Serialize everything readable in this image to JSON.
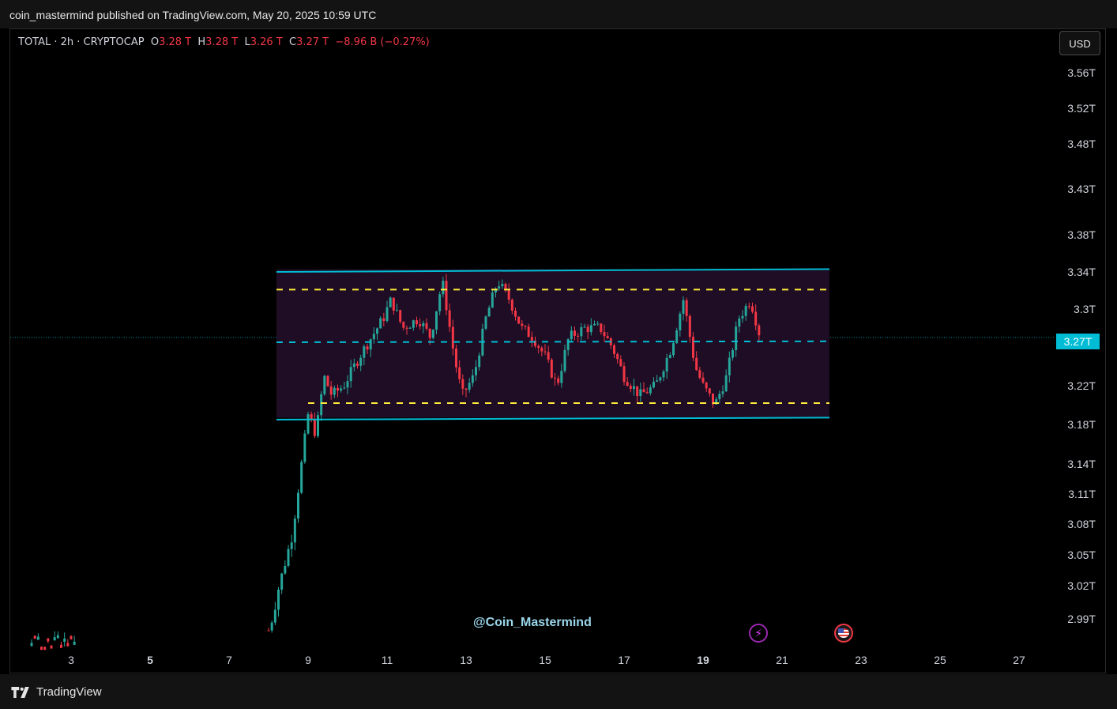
{
  "header": {
    "published_by": "coin_mastermind published on TradingView.com, May 20, 2025 10:59 UTC"
  },
  "legend": {
    "symbol": "TOTAL · 2h · CRYPTOCAP",
    "o_label": "O",
    "o_value": "3.28 T",
    "h_label": "H",
    "h_value": "3.28 T",
    "l_label": "L",
    "l_value": "3.26 T",
    "c_label": "C",
    "c_value": "3.27 T",
    "change": "−8.96 B (−0.27%)"
  },
  "currency_button": "USD",
  "current_price_label": "3.27T",
  "watermark": "@Coin_Mastermind",
  "footer": {
    "brand": "TradingView"
  },
  "colors": {
    "up": "#26a69a",
    "down": "#f23645",
    "channel_line": "#00bcd4",
    "midline": "#00bcd4",
    "inner_band": "#ffeb3b",
    "range_fill": "#1e0d24",
    "price_badge": "#00bcd4"
  },
  "icons": {
    "event_1": "lightning-icon",
    "event_2": "us-flag-icon"
  },
  "chart_data": {
    "type": "candlestick",
    "symbol": "TOTAL",
    "interval": "2h",
    "x_axis_ticks": [
      {
        "label": "3",
        "day": 3,
        "bold": false
      },
      {
        "label": "5",
        "day": 5,
        "bold": true
      },
      {
        "label": "7",
        "day": 7,
        "bold": false
      },
      {
        "label": "9",
        "day": 9,
        "bold": false
      },
      {
        "label": "11",
        "day": 11,
        "bold": false
      },
      {
        "label": "13",
        "day": 13,
        "bold": false
      },
      {
        "label": "15",
        "day": 15,
        "bold": false
      },
      {
        "label": "17",
        "day": 17,
        "bold": false
      },
      {
        "label": "19",
        "day": 19,
        "bold": true
      },
      {
        "label": "21",
        "day": 21,
        "bold": false
      },
      {
        "label": "23",
        "day": 23,
        "bold": false
      },
      {
        "label": "25",
        "day": 25,
        "bold": false
      },
      {
        "label": "27",
        "day": 27,
        "bold": false
      }
    ],
    "y_axis_ticks": [
      {
        "label": "3.56T",
        "value": 3.56
      },
      {
        "label": "3.52T",
        "value": 3.52
      },
      {
        "label": "3.48T",
        "value": 3.48
      },
      {
        "label": "3.43T",
        "value": 3.43
      },
      {
        "label": "3.38T",
        "value": 3.38
      },
      {
        "label": "3.34T",
        "value": 3.34
      },
      {
        "label": "3.3T",
        "value": 3.3
      },
      {
        "label": "3.22T",
        "value": 3.22
      },
      {
        "label": "3.18T",
        "value": 3.18
      },
      {
        "label": "3.14T",
        "value": 3.14
      },
      {
        "label": "3.11T",
        "value": 3.11
      },
      {
        "label": "3.08T",
        "value": 3.08
      },
      {
        "label": "3.05T",
        "value": 3.05
      },
      {
        "label": "3.02T",
        "value": 3.02
      },
      {
        "label": "2.99T",
        "value": 2.99
      }
    ],
    "current_price": 3.27,
    "range_box": {
      "start_day": 8.2,
      "end_day": 22.2,
      "top": 3.343,
      "bottom": 3.187
    },
    "drawings": [
      {
        "type": "channel",
        "role": "upper",
        "start": [
          8.2,
          3.34
        ],
        "end": [
          22.2,
          3.343
        ]
      },
      {
        "type": "channel",
        "role": "lower",
        "start": [
          8.2,
          3.185
        ],
        "end": [
          22.2,
          3.187
        ]
      },
      {
        "type": "dashed",
        "role": "inner-top",
        "start": [
          8.2,
          3.321
        ],
        "end": [
          22.2,
          3.321
        ]
      },
      {
        "type": "dashed",
        "role": "inner-bottom",
        "start": [
          9.0,
          3.202
        ],
        "end": [
          22.2,
          3.202
        ]
      },
      {
        "type": "dashed",
        "role": "mid",
        "start": [
          8.2,
          3.265
        ],
        "end": [
          22.2,
          3.266
        ]
      }
    ],
    "path_points": [
      [
        8.0,
        2.97
      ],
      [
        8.2,
        3.01
      ],
      [
        8.4,
        3.04
      ],
      [
        8.6,
        3.07
      ],
      [
        8.8,
        3.13
      ],
      [
        9.0,
        3.19
      ],
      [
        9.2,
        3.17
      ],
      [
        9.4,
        3.23
      ],
      [
        9.6,
        3.21
      ],
      [
        9.9,
        3.22
      ],
      [
        10.3,
        3.25
      ],
      [
        10.6,
        3.27
      ],
      [
        10.9,
        3.29
      ],
      [
        11.1,
        3.31
      ],
      [
        11.4,
        3.28
      ],
      [
        11.8,
        3.29
      ],
      [
        12.1,
        3.27
      ],
      [
        12.4,
        3.33
      ],
      [
        12.7,
        3.25
      ],
      [
        12.9,
        3.21
      ],
      [
        13.2,
        3.23
      ],
      [
        13.5,
        3.29
      ],
      [
        13.8,
        3.33
      ],
      [
        14.1,
        3.31
      ],
      [
        14.4,
        3.28
      ],
      [
        14.7,
        3.27
      ],
      [
        15.0,
        3.25
      ],
      [
        15.3,
        3.22
      ],
      [
        15.6,
        3.27
      ],
      [
        16.0,
        3.28
      ],
      [
        16.4,
        3.28
      ],
      [
        16.7,
        3.26
      ],
      [
        17.0,
        3.23
      ],
      [
        17.4,
        3.21
      ],
      [
        17.8,
        3.22
      ],
      [
        18.2,
        3.26
      ],
      [
        18.5,
        3.31
      ],
      [
        18.8,
        3.24
      ],
      [
        19.0,
        3.22
      ],
      [
        19.3,
        3.2
      ],
      [
        19.6,
        3.23
      ],
      [
        19.9,
        3.29
      ],
      [
        20.2,
        3.31
      ],
      [
        20.45,
        3.27
      ]
    ],
    "early_cluster": {
      "start_day": 2.0,
      "end_day": 3.1,
      "value": 2.95
    }
  }
}
